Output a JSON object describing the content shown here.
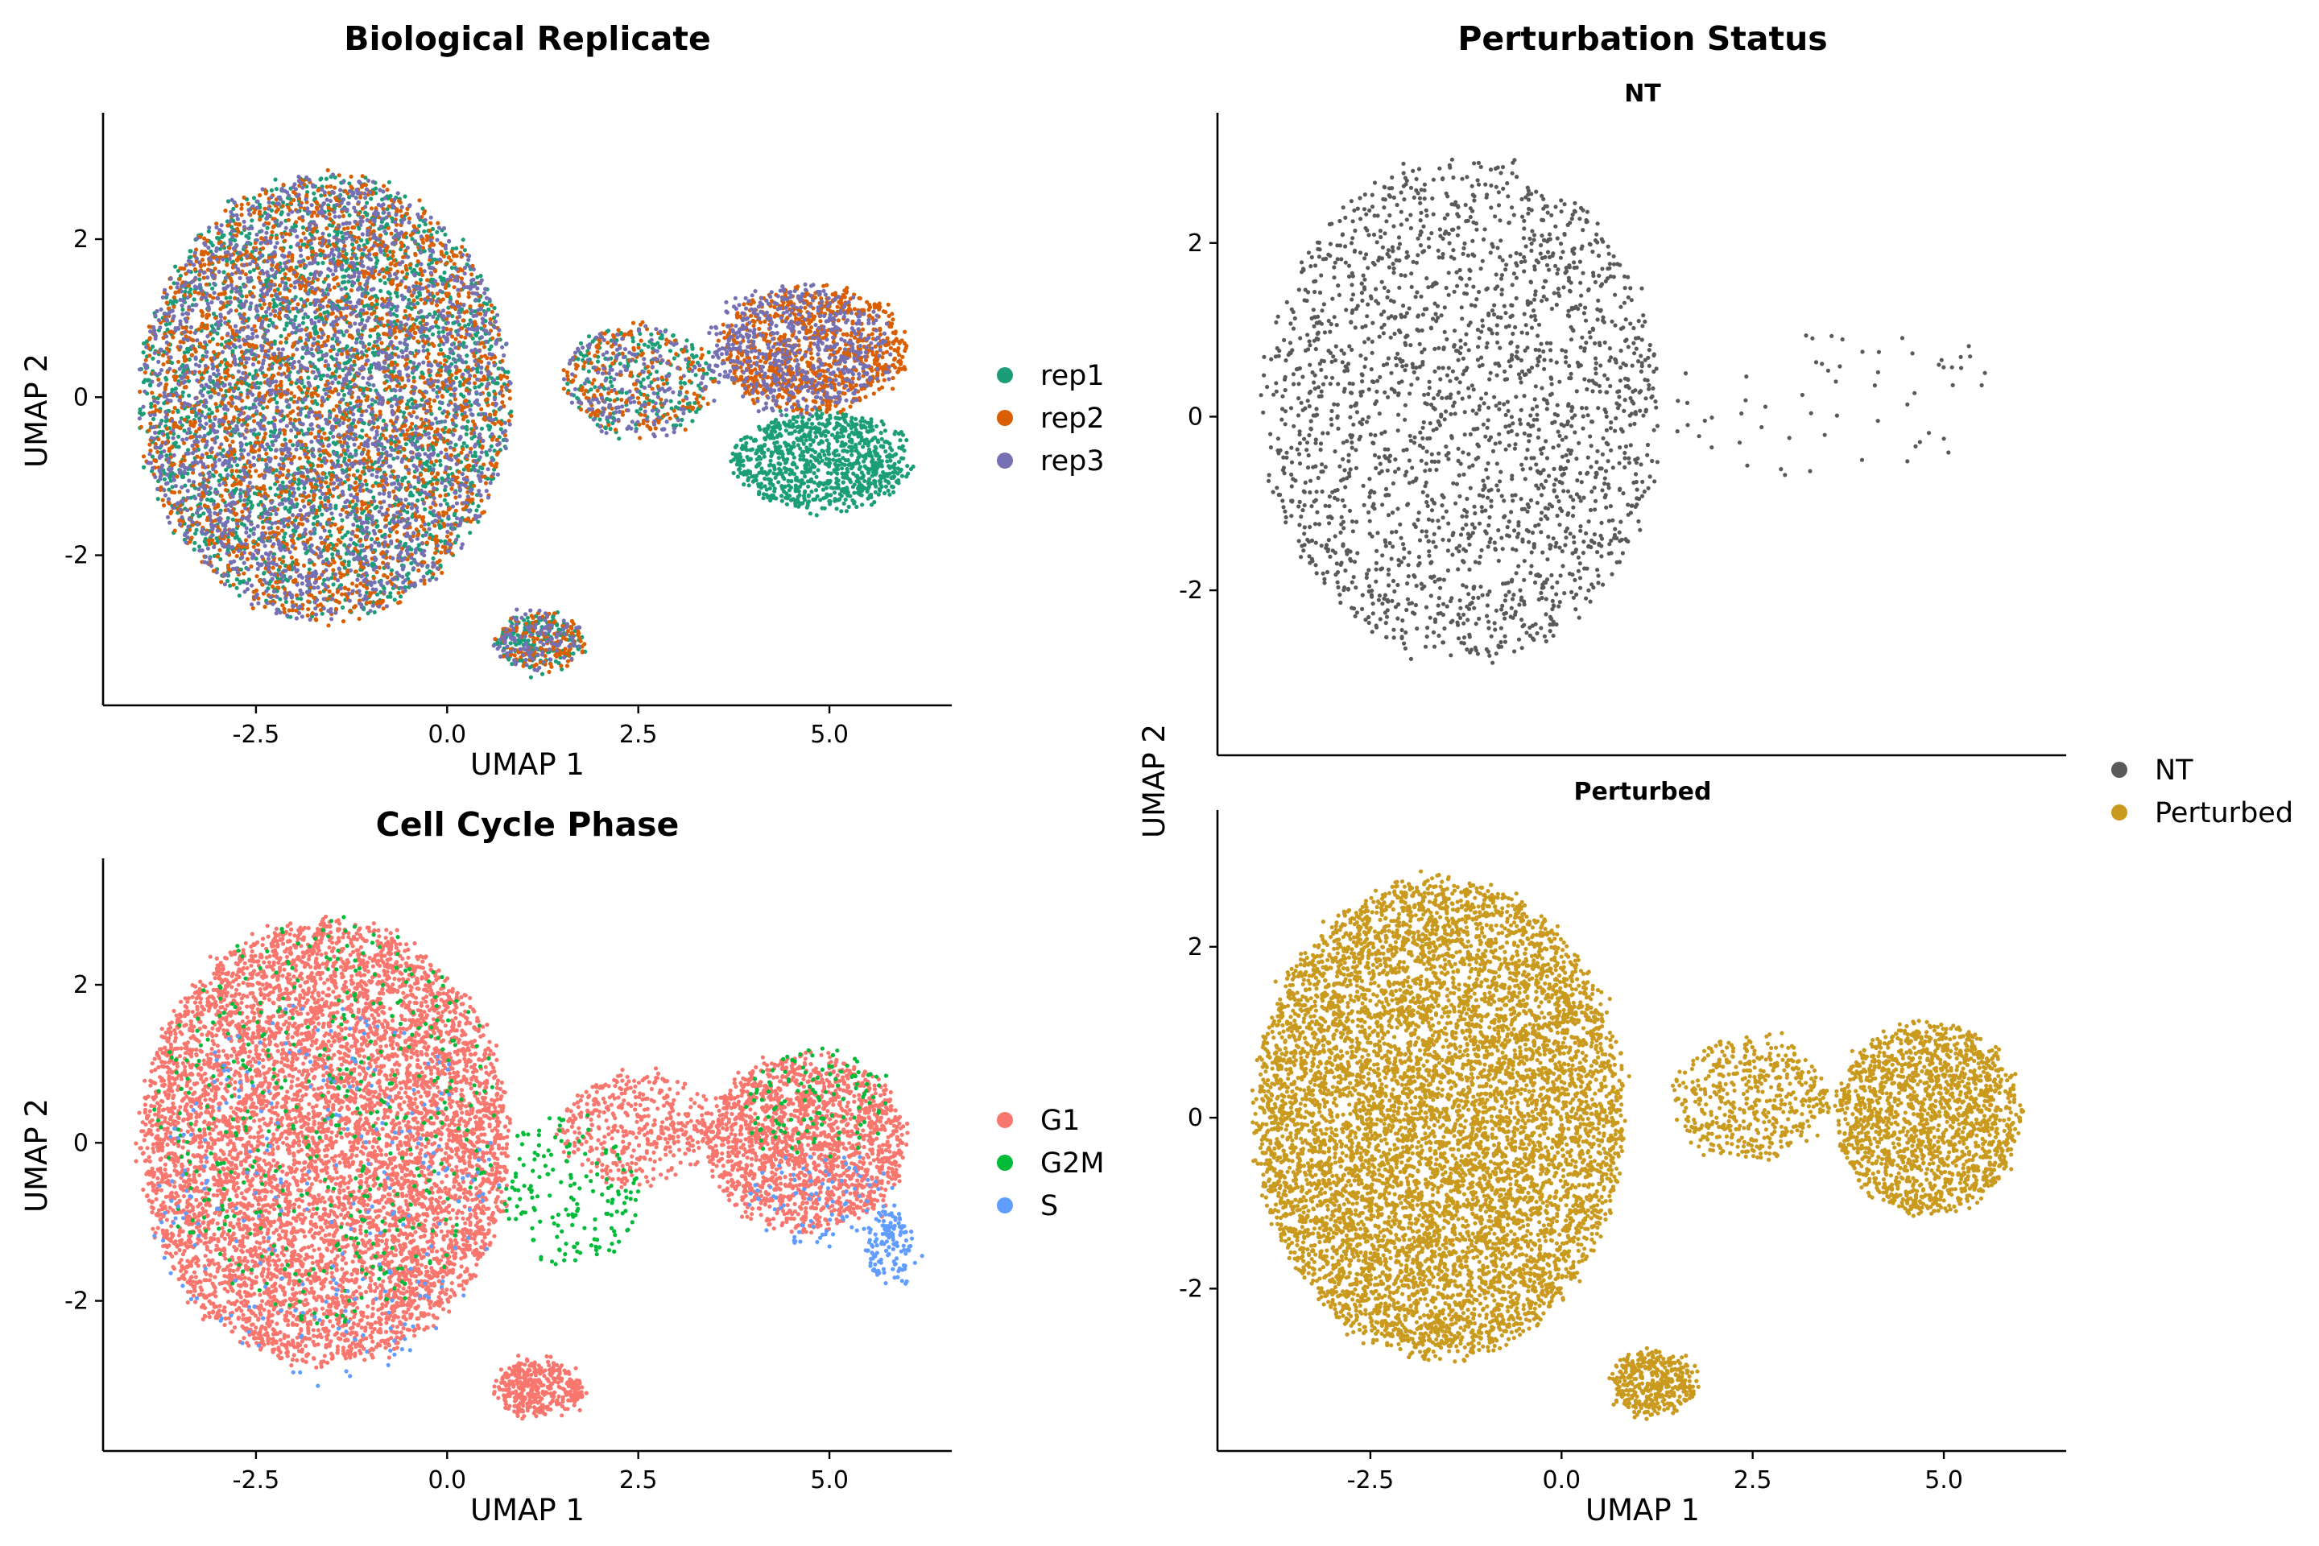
{
  "chart_data": [
    {
      "id": "replicate",
      "type": "scatter",
      "title": "Biological Replicate",
      "xlabel": "UMAP 1",
      "ylabel": "UMAP 2",
      "xlim": [
        -4.5,
        6.6
      ],
      "ylim": [
        -3.9,
        3.6
      ],
      "x_ticks": [
        -2.5,
        0.0,
        2.5,
        5.0
      ],
      "x_tick_labels": [
        "-2.5",
        "0.0",
        "2.5",
        "5.0"
      ],
      "y_ticks": [
        -2,
        0,
        2
      ],
      "y_tick_labels": [
        "-2",
        "0",
        "2"
      ],
      "legend": {
        "placement": "right",
        "entries": [
          {
            "label": "rep1",
            "color": "#1B9E77"
          },
          {
            "label": "rep2",
            "color": "#D95F02"
          },
          {
            "label": "rep3",
            "color": "#7570B3"
          }
        ]
      },
      "series": [
        {
          "name": "rep1",
          "color": "#1B9E77",
          "clusters": [
            {
              "cx": -1.6,
              "cy": 0.0,
              "rx": 2.4,
              "ry": 2.8,
              "n": 2600
            },
            {
              "cx": 4.9,
              "cy": -0.8,
              "rx": 1.15,
              "ry": 0.6,
              "n": 900
            },
            {
              "cx": 1.2,
              "cy": -3.1,
              "rx": 0.55,
              "ry": 0.35,
              "n": 160
            },
            {
              "cx": 2.5,
              "cy": 0.2,
              "rx": 1.0,
              "ry": 0.7,
              "n": 220
            }
          ]
        },
        {
          "name": "rep2",
          "color": "#D95F02",
          "clusters": [
            {
              "cx": -1.6,
              "cy": 0.0,
              "rx": 2.4,
              "ry": 2.8,
              "n": 2600
            },
            {
              "cx": 4.8,
              "cy": 0.6,
              "rx": 1.2,
              "ry": 0.8,
              "n": 900
            },
            {
              "cx": 1.2,
              "cy": -3.1,
              "rx": 0.55,
              "ry": 0.35,
              "n": 150
            },
            {
              "cx": 2.5,
              "cy": 0.2,
              "rx": 1.0,
              "ry": 0.7,
              "n": 220
            }
          ]
        },
        {
          "name": "rep3",
          "color": "#7570B3",
          "clusters": [
            {
              "cx": -1.6,
              "cy": 0.0,
              "rx": 2.4,
              "ry": 2.8,
              "n": 2400
            },
            {
              "cx": 4.6,
              "cy": 0.6,
              "rx": 1.2,
              "ry": 0.8,
              "n": 600
            },
            {
              "cx": 1.2,
              "cy": -3.1,
              "rx": 0.55,
              "ry": 0.35,
              "n": 120
            },
            {
              "cx": 2.5,
              "cy": 0.2,
              "rx": 1.0,
              "ry": 0.7,
              "n": 180
            }
          ]
        }
      ]
    },
    {
      "id": "cellcycle",
      "type": "scatter",
      "title": "Cell Cycle Phase",
      "xlabel": "UMAP 1",
      "ylabel": "UMAP 2",
      "xlim": [
        -4.5,
        6.6
      ],
      "ylim": [
        -3.9,
        3.6
      ],
      "x_ticks": [
        -2.5,
        0.0,
        2.5,
        5.0
      ],
      "x_tick_labels": [
        "-2.5",
        "0.0",
        "2.5",
        "5.0"
      ],
      "y_ticks": [
        -2,
        0,
        2
      ],
      "y_tick_labels": [
        "-2",
        "0",
        "2"
      ],
      "legend": {
        "placement": "right",
        "entries": [
          {
            "label": "G1",
            "color": "#F8766D"
          },
          {
            "label": "G2M",
            "color": "#00BA38"
          },
          {
            "label": "S",
            "color": "#619CFF"
          }
        ]
      },
      "series": [
        {
          "name": "G1",
          "color": "#F8766D",
          "clusters": [
            {
              "cx": -1.6,
              "cy": 0.0,
              "rx": 2.4,
              "ry": 2.8,
              "n": 7000
            },
            {
              "cx": 4.7,
              "cy": 0.0,
              "rx": 1.3,
              "ry": 1.1,
              "n": 1700
            },
            {
              "cx": 1.2,
              "cy": -3.1,
              "rx": 0.55,
              "ry": 0.35,
              "n": 380
            },
            {
              "cx": 2.5,
              "cy": 0.2,
              "rx": 1.0,
              "ry": 0.7,
              "n": 450
            }
          ]
        },
        {
          "name": "G2M",
          "color": "#00BA38",
          "clusters": [
            {
              "cx": -1.6,
              "cy": 0.3,
              "rx": 2.2,
              "ry": 2.6,
              "n": 450
            },
            {
              "cx": 1.6,
              "cy": -0.6,
              "rx": 0.9,
              "ry": 1.0,
              "n": 170
            },
            {
              "cx": 4.8,
              "cy": 0.5,
              "rx": 1.0,
              "ry": 0.7,
              "n": 120
            }
          ]
        },
        {
          "name": "S",
          "color": "#619CFF",
          "clusters": [
            {
              "cx": -1.6,
              "cy": -0.6,
              "rx": 2.3,
              "ry": 2.4,
              "n": 260
            },
            {
              "cx": 5.8,
              "cy": -1.3,
              "rx": 0.3,
              "ry": 0.45,
              "n": 130
            },
            {
              "cx": 4.9,
              "cy": -0.7,
              "rx": 1.0,
              "ry": 0.6,
              "n": 90
            }
          ]
        }
      ]
    },
    {
      "id": "perturbation",
      "type": "scatter",
      "title": "Perturbation Status",
      "xlabel": "UMAP 1",
      "ylabel": "UMAP 2",
      "xlim": [
        -4.5,
        6.6
      ],
      "x_ticks": [
        -2.5,
        0.0,
        2.5,
        5.0
      ],
      "x_tick_labels": [
        "-2.5",
        "0.0",
        "2.5",
        "5.0"
      ],
      "legend": {
        "placement": "right",
        "entries": [
          {
            "label": "NT",
            "color": "#595959"
          },
          {
            "label": "Perturbed",
            "color": "#C99A1E"
          }
        ]
      },
      "facets": [
        {
          "title": "NT",
          "ylim": [
            -3.9,
            3.5
          ],
          "y_ticks": [
            -2,
            0,
            2
          ],
          "y_tick_labels": [
            "-2",
            "0",
            "2"
          ],
          "series": [
            {
              "name": "NT",
              "color": "#595959",
              "clusters": [
                {
                  "cx": -1.3,
                  "cy": 0.1,
                  "rx": 2.6,
                  "ry": 2.9,
                  "n": 2200
                },
                {
                  "cx": 3.5,
                  "cy": 0.2,
                  "rx": 2.3,
                  "ry": 0.9,
                  "n": 60
                }
              ]
            }
          ]
        },
        {
          "title": "Perturbed",
          "ylim": [
            -3.9,
            3.6
          ],
          "y_ticks": [
            -2,
            0,
            2
          ],
          "y_tick_labels": [
            "-2",
            "0",
            "2"
          ],
          "series": [
            {
              "name": "Perturbed",
              "color": "#C99A1E",
              "clusters": [
                {
                  "cx": -1.6,
                  "cy": 0.0,
                  "rx": 2.4,
                  "ry": 2.8,
                  "n": 7800
                },
                {
                  "cx": 4.8,
                  "cy": 0.0,
                  "rx": 1.2,
                  "ry": 1.1,
                  "n": 1700
                },
                {
                  "cx": 1.2,
                  "cy": -3.1,
                  "rx": 0.55,
                  "ry": 0.35,
                  "n": 400
                },
                {
                  "cx": 2.5,
                  "cy": 0.2,
                  "rx": 1.0,
                  "ry": 0.7,
                  "n": 500
                }
              ]
            }
          ]
        }
      ]
    }
  ]
}
